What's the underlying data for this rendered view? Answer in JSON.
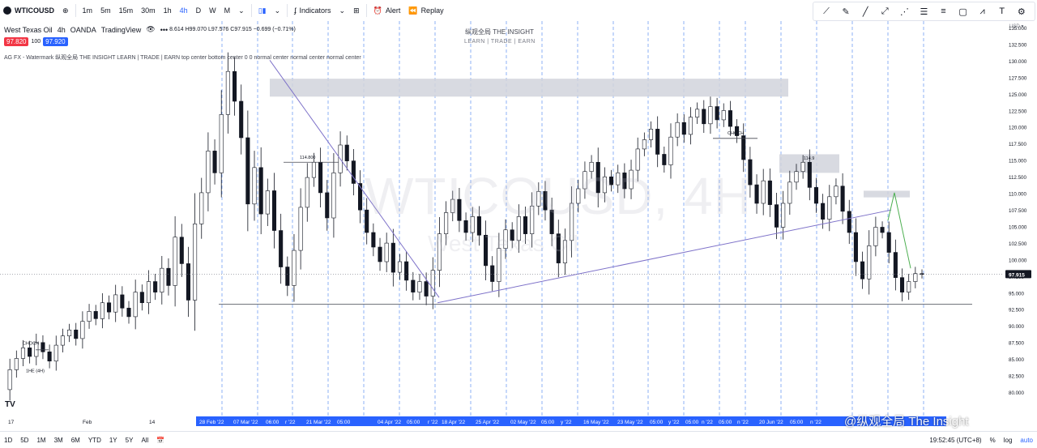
{
  "toolbar": {
    "symbol": "WTICOUSD",
    "intervals": [
      "1m",
      "5m",
      "15m",
      "30m",
      "1h",
      "4h",
      "D",
      "W",
      "M"
    ],
    "active_interval": "4h",
    "indicators_label": "Indicators",
    "alert_label": "Alert",
    "replay_label": "Replay"
  },
  "drawing_tools": [
    "trend-line-icon",
    "brush-icon",
    "ray-icon",
    "extended-line-icon",
    "pitchfork-icon",
    "horizontal-lines-icon",
    "parallel-channel-icon",
    "rectangle-icon",
    "path-icon",
    "text-icon",
    "settings-icon"
  ],
  "legend": {
    "title": "West Texas Oil",
    "interval": "4h",
    "broker": "OANDA",
    "source": "TradingView",
    "ohlc": "8.614 H99.070 L97.576 C97.915 −0.699 (−0.71%)",
    "sell_price": "97.820",
    "spread": "100",
    "buy_price": "97.920",
    "indicator": "AG FX - Watermark 纵观全局 THE INSIGHT LEARN | TRADE | EARN top center bottom center 0 0 normal center normal center normal center"
  },
  "watermark": {
    "line1": "纵观全局 THE INSIGHT",
    "line2": "LEARN  |  TRADE  |  EARN",
    "big": "WTICOUSD, 4H",
    "big_sub": "West Texas Oil"
  },
  "chart_data": {
    "type": "candlestick",
    "symbol": "WTICOUSD",
    "interval": "4h",
    "currency": "USD",
    "ylim": [
      77.5,
      135.0
    ],
    "y_ticks": [
      "135.000",
      "132.500",
      "130.000",
      "127.500",
      "125.000",
      "122.500",
      "120.000",
      "117.500",
      "115.000",
      "112.500",
      "110.000",
      "107.500",
      "105.000",
      "102.500",
      "100.000",
      "97.500",
      "95.000",
      "92.500",
      "90.000",
      "87.500",
      "85.000",
      "82.500",
      "80.000"
    ],
    "y_tick_values": [
      135,
      132.5,
      130,
      127.5,
      125,
      122.5,
      120,
      117.5,
      115,
      112.5,
      110,
      107.5,
      105,
      102.5,
      100,
      97.5,
      95,
      92.5,
      90,
      87.5,
      85,
      82.5,
      80
    ],
    "x_labels": [
      "17",
      "Feb",
      "14",
      "28 Feb '22",
      "07 Mar '22",
      "06:00",
      "r '22",
      "21 Mar '22",
      "05:00",
      "04 Apr '22",
      "05:00",
      "r '22",
      "18 Apr '22",
      "25 Apr '22",
      "02 May '22",
      "05:00",
      "y '22",
      "16 May '22",
      "23 May '22",
      "05:00",
      "y '22",
      "05:00",
      "n '22",
      "05:00",
      "n '22",
      "20 Jun '22",
      "05:00",
      "n '22"
    ],
    "last_price": "97.915",
    "price_path": [
      [
        0,
        80.5
      ],
      [
        1,
        83.5
      ],
      [
        2,
        85.2
      ],
      [
        3,
        86.8
      ],
      [
        4,
        85.5
      ],
      [
        5,
        87.6
      ],
      [
        6,
        86.2
      ],
      [
        7,
        84.8
      ],
      [
        8,
        87.2
      ],
      [
        9,
        88.6
      ],
      [
        10,
        89.5
      ],
      [
        11,
        88.2
      ],
      [
        12,
        90.8
      ],
      [
        13,
        92.3
      ],
      [
        14,
        91.2
      ],
      [
        15,
        93.6
      ],
      [
        16,
        92.2
      ],
      [
        17,
        94.8
      ],
      [
        18,
        92.8
      ],
      [
        19,
        91.5
      ],
      [
        20,
        95.2
      ],
      [
        21,
        93.6
      ],
      [
        22,
        96.8
      ],
      [
        23,
        95.2
      ],
      [
        24,
        98.8
      ],
      [
        25,
        96.2
      ],
      [
        26,
        103.5
      ],
      [
        27,
        99.5
      ],
      [
        28,
        94.0
      ],
      [
        29,
        105.5
      ],
      [
        30,
        110.2
      ],
      [
        31,
        116.5
      ],
      [
        32,
        113.2
      ],
      [
        33,
        122.0
      ],
      [
        34,
        128.5
      ],
      [
        35,
        124.0
      ],
      [
        36,
        118.5
      ],
      [
        37,
        108.5
      ],
      [
        38,
        114.0
      ],
      [
        39,
        107.0
      ],
      [
        40,
        110.5
      ],
      [
        41,
        104.5
      ],
      [
        42,
        99.0
      ],
      [
        43,
        96.2
      ],
      [
        44,
        101.5
      ],
      [
        45,
        108.0
      ],
      [
        46,
        112.5
      ],
      [
        47,
        114.8
      ],
      [
        48,
        110.2
      ],
      [
        49,
        106.4
      ],
      [
        50,
        113.2
      ],
      [
        51,
        117.4
      ],
      [
        52,
        115.0
      ],
      [
        53,
        111.6
      ],
      [
        54,
        107.6
      ],
      [
        55,
        104.2
      ],
      [
        56,
        102.0
      ],
      [
        57,
        99.8
      ],
      [
        58,
        102.6
      ],
      [
        59,
        98.2
      ],
      [
        60,
        99.8
      ],
      [
        61,
        97.0
      ],
      [
        62,
        95.2
      ],
      [
        63,
        96.8
      ],
      [
        64,
        94.6
      ],
      [
        65,
        98.5
      ],
      [
        66,
        104.0
      ],
      [
        67,
        107.2
      ],
      [
        68,
        109.2
      ],
      [
        69,
        106.0
      ],
      [
        70,
        104.2
      ],
      [
        71,
        106.6
      ],
      [
        72,
        103.8
      ],
      [
        73,
        99.2
      ],
      [
        74,
        96.8
      ],
      [
        75,
        101.8
      ],
      [
        76,
        104.6
      ],
      [
        77,
        103.0
      ],
      [
        78,
        106.6
      ],
      [
        79,
        104.0
      ],
      [
        80,
        108.2
      ],
      [
        81,
        110.4
      ],
      [
        82,
        107.6
      ],
      [
        83,
        104.0
      ],
      [
        84,
        99.6
      ],
      [
        85,
        103.0
      ],
      [
        86,
        108.6
      ],
      [
        87,
        110.8
      ],
      [
        88,
        113.4
      ],
      [
        89,
        114.8
      ],
      [
        90,
        110.2
      ],
      [
        91,
        112.6
      ],
      [
        92,
        111.4
      ],
      [
        93,
        113.2
      ],
      [
        94,
        110.8
      ],
      [
        95,
        113.6
      ],
      [
        96,
        116.8
      ],
      [
        97,
        118.2
      ],
      [
        98,
        119.8
      ],
      [
        99,
        116.0
      ],
      [
        100,
        114.4
      ],
      [
        101,
        118.6
      ],
      [
        102,
        120.8
      ],
      [
        103,
        119.0
      ],
      [
        104,
        121.6
      ],
      [
        105,
        122.8
      ],
      [
        106,
        120.6
      ],
      [
        107,
        123.2
      ],
      [
        108,
        121.2
      ],
      [
        109,
        122.6
      ],
      [
        110,
        120.2
      ],
      [
        111,
        118.8
      ],
      [
        112,
        115.2
      ],
      [
        113,
        111.4
      ],
      [
        114,
        108.6
      ],
      [
        115,
        112.0
      ],
      [
        116,
        108.4
      ],
      [
        117,
        105.0
      ],
      [
        118,
        108.6
      ],
      [
        119,
        111.8
      ],
      [
        120,
        113.4
      ],
      [
        121,
        114.8
      ],
      [
        122,
        111.0
      ],
      [
        123,
        108.6
      ],
      [
        124,
        106.2
      ],
      [
        125,
        109.6
      ],
      [
        126,
        111.2
      ],
      [
        127,
        107.4
      ],
      [
        128,
        104.2
      ],
      [
        129,
        99.8
      ],
      [
        130,
        97.2
      ],
      [
        131,
        102.2
      ],
      [
        132,
        105.0
      ],
      [
        133,
        104.2
      ],
      [
        134,
        101.2
      ],
      [
        135,
        97.4
      ],
      [
        136,
        95.2
      ],
      [
        137,
        96.8
      ],
      [
        138,
        98.0
      ],
      [
        139,
        97.9
      ]
    ],
    "annotations": [
      {
        "type": "label",
        "text": "114.800"
      },
      {
        "type": "label",
        "text": "114.9"
      },
      {
        "type": "label",
        "text": "CHOCH"
      },
      {
        "type": "label",
        "text": "CHOCH"
      },
      {
        "type": "label",
        "text": "1HE (4H)"
      }
    ]
  },
  "bottombar": {
    "ranges": [
      "1D",
      "5D",
      "1M",
      "3M",
      "6M",
      "YTD",
      "1Y",
      "5Y",
      "All"
    ],
    "clock": "19:52:45 (UTC+8)",
    "percent": "%",
    "log": "log",
    "auto": "auto"
  },
  "footer_watermark": "@纵观全局 The Insight",
  "colors": {
    "candle": "#131722",
    "trend": "#7e72c9",
    "grid_dashed": "#5b8def",
    "zone": "#d1d4dc",
    "arrow": "#4caf50",
    "price_label_bg": "#131722"
  }
}
